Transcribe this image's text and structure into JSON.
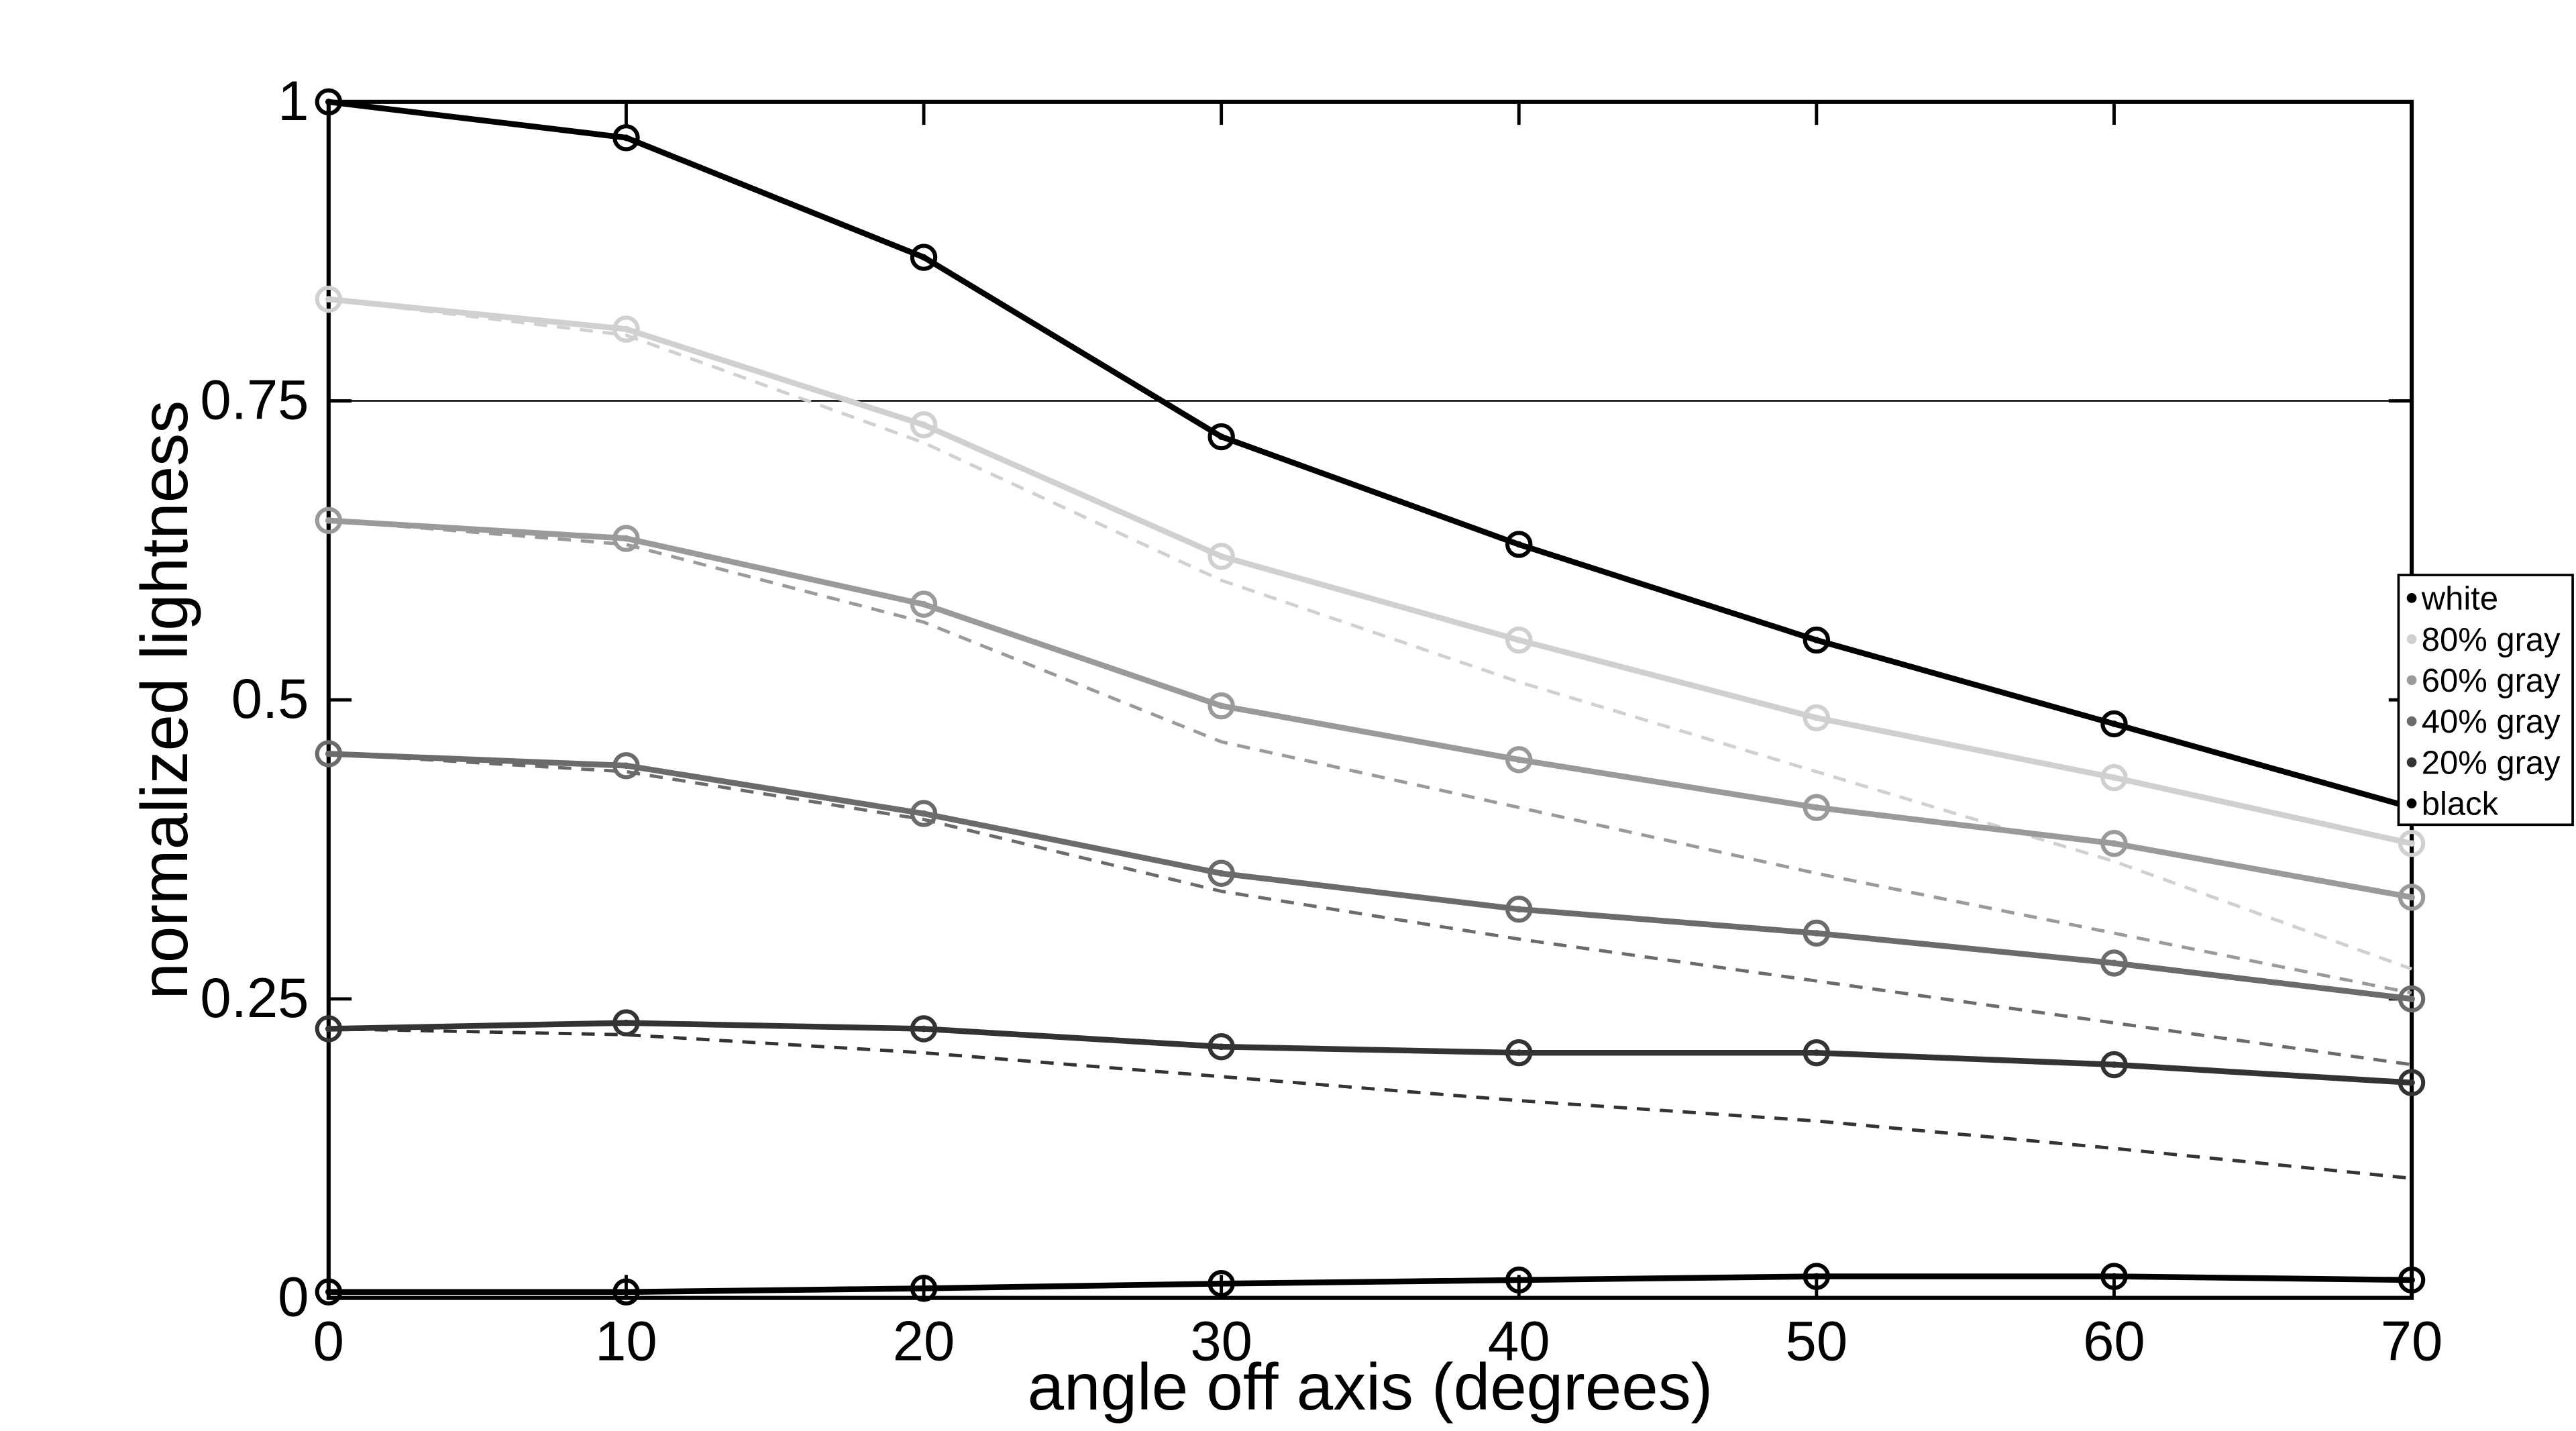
{
  "figure": {
    "background": "#ffffff"
  },
  "chart_data": {
    "type": "line",
    "title": "",
    "xlabel": "angle off axis (degrees)",
    "ylabel": "normalized lightness",
    "xlim": [
      0,
      70
    ],
    "ylim": [
      0,
      1
    ],
    "xticks": [
      0,
      10,
      20,
      30,
      40,
      50,
      60,
      70
    ],
    "yticks": [
      0,
      0.25,
      0.5,
      0.75,
      1
    ],
    "ytick_labels": [
      "0",
      "0.25",
      "0.5",
      "0.75",
      "1"
    ],
    "grid": "single horizontal reference line",
    "reference_line_y": 0.75,
    "x": [
      0,
      10,
      20,
      30,
      40,
      50,
      60,
      70
    ],
    "series": [
      {
        "name": "80% gray (dashed)",
        "style": "dashed",
        "marker": "none",
        "color": "#d0d0d0",
        "values": [
          0.835,
          0.805,
          0.715,
          0.6,
          0.515,
          0.44,
          0.365,
          0.275
        ]
      },
      {
        "name": "60% gray (dashed)",
        "style": "dashed",
        "marker": "none",
        "color": "#9a9a9a",
        "values": [
          0.65,
          0.63,
          0.565,
          0.465,
          0.41,
          0.355,
          0.305,
          0.255
        ]
      },
      {
        "name": "40% gray (dashed)",
        "style": "dashed",
        "marker": "none",
        "color": "#6b6b6b",
        "values": [
          0.455,
          0.44,
          0.4,
          0.34,
          0.3,
          0.265,
          0.23,
          0.195
        ]
      },
      {
        "name": "20% gray (dashed)",
        "style": "dashed",
        "marker": "none",
        "color": "#333333",
        "values": [
          0.225,
          0.22,
          0.205,
          0.185,
          0.165,
          0.148,
          0.125,
          0.1
        ]
      },
      {
        "name": "white",
        "style": "solid",
        "marker": "circle",
        "color": "#000000",
        "values": [
          1.0,
          0.97,
          0.87,
          0.72,
          0.63,
          0.55,
          0.48,
          0.41
        ]
      },
      {
        "name": "80% gray",
        "style": "solid",
        "marker": "circle",
        "color": "#d0d0d0",
        "values": [
          0.835,
          0.81,
          0.73,
          0.62,
          0.55,
          0.485,
          0.435,
          0.38
        ]
      },
      {
        "name": "60% gray",
        "style": "solid",
        "marker": "circle",
        "color": "#9a9a9a",
        "values": [
          0.65,
          0.635,
          0.58,
          0.495,
          0.45,
          0.41,
          0.38,
          0.335
        ]
      },
      {
        "name": "40% gray",
        "style": "solid",
        "marker": "circle",
        "color": "#6b6b6b",
        "values": [
          0.455,
          0.445,
          0.405,
          0.355,
          0.325,
          0.305,
          0.28,
          0.25
        ]
      },
      {
        "name": "20% gray",
        "style": "solid",
        "marker": "circle",
        "color": "#333333",
        "values": [
          0.225,
          0.23,
          0.225,
          0.21,
          0.205,
          0.205,
          0.195,
          0.18
        ]
      },
      {
        "name": "black",
        "style": "solid",
        "marker": "circle",
        "color": "#000000",
        "values": [
          0.005,
          0.005,
          0.008,
          0.012,
          0.015,
          0.018,
          0.018,
          0.015
        ]
      }
    ],
    "legend": {
      "position": "right-edge",
      "entries": [
        {
          "label": "white",
          "color": "#000000"
        },
        {
          "label": "80% gray",
          "color": "#d0d0d0"
        },
        {
          "label": "60% gray",
          "color": "#9a9a9a"
        },
        {
          "label": "40% gray",
          "color": "#6b6b6b"
        },
        {
          "label": "20% gray",
          "color": "#333333"
        },
        {
          "label": "black",
          "color": "#000000"
        }
      ]
    }
  }
}
